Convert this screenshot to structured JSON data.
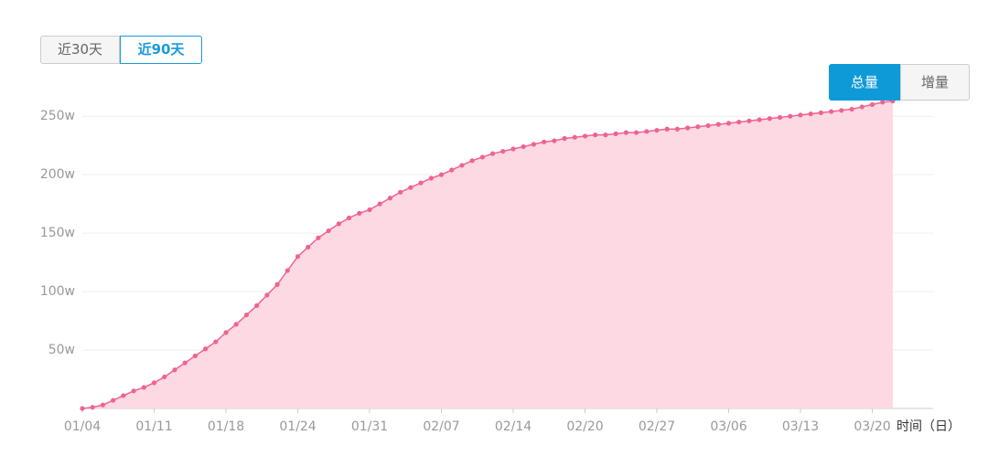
{
  "ui": {
    "range_buttons": [
      "近30天",
      "近90天"
    ],
    "mode_buttons": [
      "总量",
      "增量"
    ]
  },
  "chart_data": {
    "type": "area",
    "x_label": "时间（日）",
    "color": "#f06292",
    "fill": "#fcd9e3",
    "grid": true,
    "categories": [
      "01/04",
      null,
      null,
      null,
      null,
      null,
      null,
      "01/11",
      null,
      null,
      null,
      null,
      null,
      null,
      "01/18",
      null,
      null,
      null,
      null,
      null,
      null,
      "01/24",
      null,
      null,
      null,
      null,
      null,
      null,
      "01/31",
      null,
      null,
      null,
      null,
      null,
      null,
      "02/07",
      null,
      null,
      null,
      null,
      null,
      null,
      "02/14",
      null,
      null,
      null,
      null,
      null,
      null,
      "02/20",
      null,
      null,
      null,
      null,
      null,
      null,
      "02/27",
      null,
      null,
      null,
      null,
      null,
      null,
      "03/06",
      null,
      null,
      null,
      null,
      null,
      null,
      "03/13",
      null,
      null,
      null,
      null,
      null,
      null,
      "03/20",
      null,
      null
    ],
    "values": [
      0,
      1,
      3,
      7,
      11,
      15,
      18,
      22,
      27,
      33,
      39,
      45,
      51,
      57,
      65,
      72,
      80,
      88,
      97,
      106,
      118,
      130,
      138,
      146,
      152,
      158,
      163,
      167,
      170,
      175,
      180,
      185,
      189,
      193,
      197,
      200,
      204,
      208,
      212,
      215,
      218,
      220,
      222,
      224,
      226,
      228,
      229,
      231,
      232,
      233,
      234,
      234,
      235,
      236,
      236,
      237,
      238,
      239,
      239,
      240,
      241,
      242,
      243,
      244,
      245,
      246,
      247,
      248,
      249,
      250,
      251,
      252,
      253,
      254,
      255,
      256,
      258,
      260,
      262,
      263
    ],
    "ylim": [
      0,
      265
    ],
    "yticks": [
      {
        "value": 50,
        "label": "50w"
      },
      {
        "value": 100,
        "label": "100w"
      },
      {
        "value": 150,
        "label": "150w"
      },
      {
        "value": 200,
        "label": "200w"
      },
      {
        "value": 250,
        "label": "250w"
      }
    ]
  }
}
